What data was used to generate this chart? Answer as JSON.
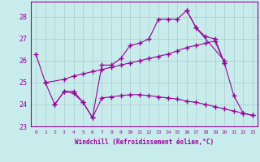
{
  "xlabel": "Windchill (Refroidissement éolien,°C)",
  "bg_color": "#c8ecec",
  "line_color": "#990099",
  "grid_color": "#aacccc",
  "xlim": [
    -0.5,
    23.5
  ],
  "ylim": [
    23.0,
    28.7
  ],
  "xticks": [
    0,
    1,
    2,
    3,
    4,
    5,
    6,
    7,
    8,
    9,
    10,
    11,
    12,
    13,
    14,
    15,
    16,
    17,
    18,
    19,
    20,
    21,
    22,
    23
  ],
  "yticks": [
    23,
    24,
    25,
    26,
    27,
    28
  ],
  "series1_x": [
    0,
    1,
    2,
    3,
    4,
    5,
    6,
    7,
    8,
    9,
    10,
    11,
    12,
    13,
    14,
    15,
    16,
    17,
    20
  ],
  "series1_y": [
    26.3,
    25.0,
    24.0,
    24.6,
    24.6,
    24.1,
    23.4,
    25.8,
    25.8,
    26.1,
    26.7,
    26.8,
    27.0,
    27.9,
    27.9,
    27.9,
    28.3,
    27.5,
    26.0
  ],
  "series2_x": [
    2,
    3,
    4,
    5,
    6,
    7,
    8,
    9,
    10,
    11,
    12,
    13,
    14,
    15,
    16,
    17,
    18,
    19,
    20,
    21,
    22,
    23
  ],
  "series2_y": [
    24.0,
    24.6,
    24.5,
    24.1,
    23.4,
    24.3,
    24.35,
    24.4,
    24.45,
    24.45,
    24.4,
    24.35,
    24.3,
    24.25,
    24.15,
    24.1,
    24.0,
    23.9,
    23.8,
    23.7,
    23.6,
    23.5
  ],
  "series3_x": [
    1,
    3,
    4,
    5,
    6,
    7,
    8,
    9,
    10,
    11,
    12,
    13,
    14,
    15,
    16,
    17,
    18,
    19,
    20
  ],
  "series3_y": [
    25.0,
    25.15,
    25.3,
    25.4,
    25.5,
    25.6,
    25.7,
    25.8,
    25.9,
    26.0,
    26.1,
    26.2,
    26.3,
    26.45,
    26.6,
    26.7,
    26.8,
    26.9,
    25.9
  ],
  "series4_x": [
    16,
    17,
    18,
    19,
    20,
    21,
    22,
    23
  ],
  "series4_y": [
    28.3,
    27.5,
    27.1,
    27.0,
    25.9,
    24.4,
    23.6,
    23.5
  ]
}
